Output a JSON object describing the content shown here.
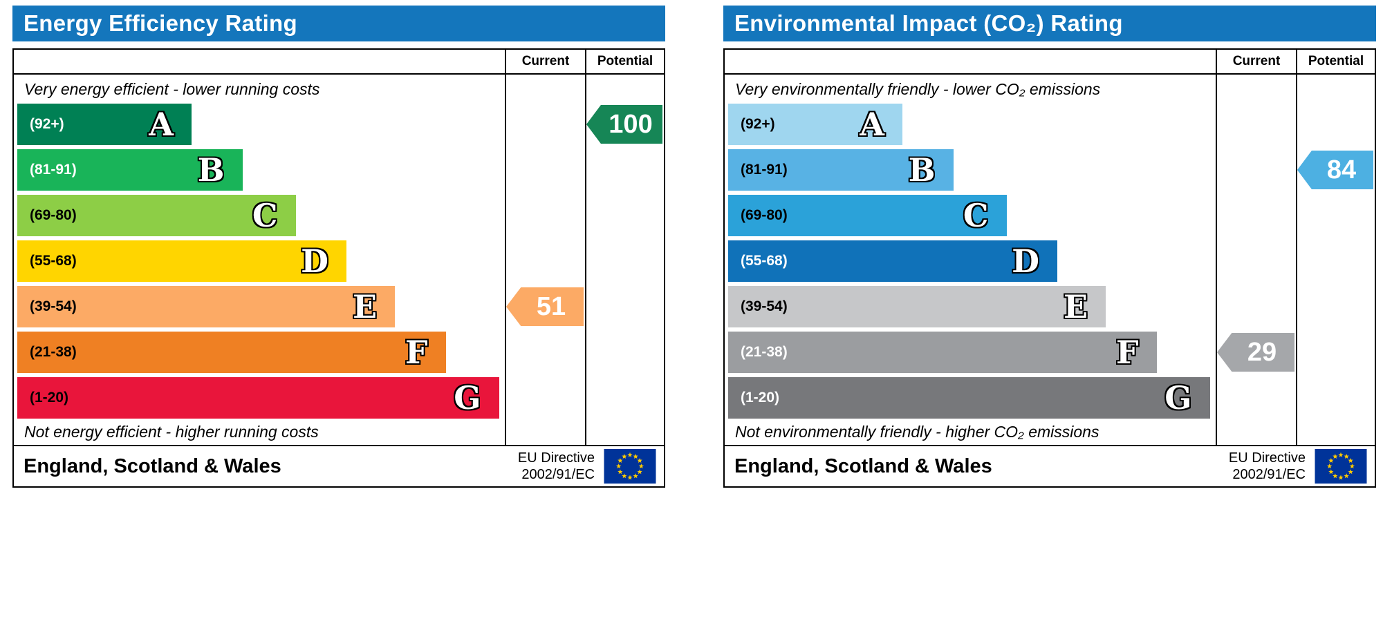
{
  "charts": [
    {
      "title": "Energy Efficiency Rating",
      "col_current": "Current",
      "col_potential": "Potential",
      "top_caption": "Very energy efficient - lower running costs",
      "bottom_caption": "Not energy efficient - higher running costs",
      "bands": [
        {
          "range": "(92+)",
          "letter": "A",
          "color": "#008054",
          "width": "36%",
          "range_color": "#ffffff"
        },
        {
          "range": "(81-91)",
          "letter": "B",
          "color": "#19b459",
          "width": "46.5%",
          "range_color": "#ffffff"
        },
        {
          "range": "(69-80)",
          "letter": "C",
          "color": "#8dce46",
          "width": "57.5%",
          "range_color": "#000000"
        },
        {
          "range": "(55-68)",
          "letter": "D",
          "color": "#ffd500",
          "width": "68%",
          "range_color": "#000000"
        },
        {
          "range": "(39-54)",
          "letter": "E",
          "color": "#fcaa65",
          "width": "78%",
          "range_color": "#000000"
        },
        {
          "range": "(21-38)",
          "letter": "F",
          "color": "#ef8023",
          "width": "88.5%",
          "range_color": "#000000"
        },
        {
          "range": "(1-20)",
          "letter": "G",
          "color": "#e9153b",
          "width": "99.5%",
          "range_color": "#000000"
        }
      ],
      "current": {
        "label": "51",
        "band": 4,
        "color": "#fcaa65"
      },
      "potential": {
        "label": "100",
        "band": 0,
        "color": "#168656"
      },
      "footer_region": "England, Scotland & Wales",
      "directive_line1": "EU Directive",
      "directive_line2": "2002/91/EC"
    },
    {
      "title": "Environmental Impact (CO₂) Rating",
      "col_current": "Current",
      "col_potential": "Potential",
      "top_caption": "Very environmentally friendly - lower CO₂ emissions",
      "bottom_caption": "Not environmentally friendly - higher CO₂ emissions",
      "bands": [
        {
          "range": "(92+)",
          "letter": "A",
          "color": "#9fd6ef",
          "width": "36%",
          "range_color": "#000000"
        },
        {
          "range": "(81-91)",
          "letter": "B",
          "color": "#58b2e4",
          "width": "46.5%",
          "range_color": "#000000"
        },
        {
          "range": "(69-80)",
          "letter": "C",
          "color": "#2ba2d9",
          "width": "57.5%",
          "range_color": "#000000"
        },
        {
          "range": "(55-68)",
          "letter": "D",
          "color": "#1072b9",
          "width": "68%",
          "range_color": "#ffffff"
        },
        {
          "range": "(39-54)",
          "letter": "E",
          "color": "#c6c7c9",
          "width": "78%",
          "range_color": "#000000"
        },
        {
          "range": "(21-38)",
          "letter": "F",
          "color": "#9b9da0",
          "width": "88.5%",
          "range_color": "#ffffff"
        },
        {
          "range": "(1-20)",
          "letter": "G",
          "color": "#77787b",
          "width": "99.5%",
          "range_color": "#ffffff"
        }
      ],
      "current": {
        "label": "29",
        "band": 5,
        "color": "#a5a7aa"
      },
      "potential": {
        "label": "84",
        "band": 1,
        "color": "#4db0e2"
      },
      "footer_region": "England, Scotland & Wales",
      "directive_line1": "EU Directive",
      "directive_line2": "2002/91/EC"
    }
  ],
  "chart_data": [
    {
      "type": "bar",
      "title": "Energy Efficiency Rating",
      "categories": [
        "A (92+)",
        "B (81-91)",
        "C (69-80)",
        "D (55-68)",
        "E (39-54)",
        "F (21-38)",
        "G (1-20)"
      ],
      "band_widths_pct": [
        36,
        46.5,
        57.5,
        68,
        78,
        88.5,
        99.5
      ],
      "current": {
        "value": 51,
        "band": "E"
      },
      "potential": {
        "value": 100,
        "band": "A"
      },
      "top_note": "Very energy efficient - lower running costs",
      "bottom_note": "Not energy efficient - higher running costs"
    },
    {
      "type": "bar",
      "title": "Environmental Impact (CO₂) Rating",
      "categories": [
        "A (92+)",
        "B (81-91)",
        "C (69-80)",
        "D (55-68)",
        "E (39-54)",
        "F (21-38)",
        "G (1-20)"
      ],
      "band_widths_pct": [
        36,
        46.5,
        57.5,
        68,
        78,
        88.5,
        99.5
      ],
      "current": {
        "value": 29,
        "band": "F"
      },
      "potential": {
        "value": 84,
        "band": "B"
      },
      "top_note": "Very environmentally friendly - lower CO₂ emissions",
      "bottom_note": "Not environmentally friendly - higher CO₂ emissions"
    }
  ]
}
